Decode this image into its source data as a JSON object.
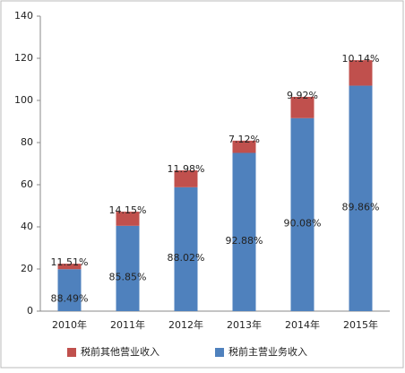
{
  "chart_data": {
    "type": "stacked_bar",
    "categories": [
      "2010年",
      "2011年",
      "2012年",
      "2013年",
      "2014年",
      "2015年"
    ],
    "series": [
      {
        "name": "税前主营业务收入",
        "color": "#4f81bd",
        "values": [
          19.9,
          40.5,
          58.8,
          75.1,
          91.6,
          107.0
        ],
        "percent_labels": [
          "88.49%",
          "85.85%",
          "88.02%",
          "92.88%",
          "90.08%",
          "89.86%"
        ]
      },
      {
        "name": "税前其他营业收入",
        "color": "#c0504d",
        "values": [
          2.6,
          6.7,
          8.0,
          5.8,
          10.1,
          12.1
        ],
        "percent_labels": [
          "11.51%",
          "14.15%",
          "11.98%",
          "7.12%",
          "9.92%",
          "10.14%"
        ]
      }
    ],
    "ylim": [
      0,
      140
    ],
    "yticks": [
      0,
      20,
      40,
      60,
      80,
      100,
      120,
      140
    ],
    "grid": false
  }
}
